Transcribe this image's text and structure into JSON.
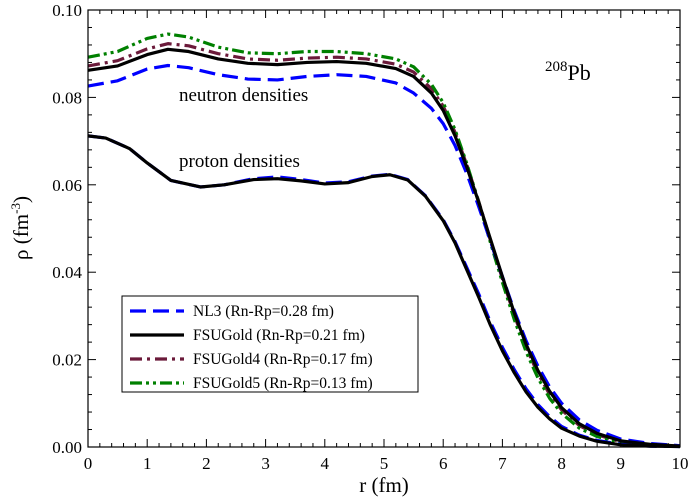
{
  "chart_data": {
    "type": "line",
    "xlabel": "r (fm)",
    "ylabel_main": "ρ (fm",
    "ylabel_sup": "-3",
    "ylabel_close": ")",
    "xlim": [
      0,
      10
    ],
    "ylim": [
      0,
      0.1
    ],
    "xticks": [
      "0",
      "1",
      "2",
      "3",
      "4",
      "5",
      "6",
      "7",
      "8",
      "9",
      "10"
    ],
    "yticks": [
      "0.00",
      "0.02",
      "0.04",
      "0.06",
      "0.08",
      "0.10"
    ],
    "grid": false,
    "legend_position": "bottom-left",
    "annotations": {
      "nucleus_mass": "208",
      "nucleus_symbol": "Pb",
      "neutron_label": "neutron densities",
      "proton_label": "proton densities"
    },
    "series": [
      {
        "name": "NL3 (Rn-Rp=0.28 fm)",
        "color": "#0000ff",
        "dash": "long-dash",
        "neutron": {
          "x": [
            0,
            0.5,
            1.0,
            1.35,
            1.7,
            2.2,
            2.7,
            3.2,
            3.7,
            4.2,
            4.7,
            5.2,
            5.5,
            5.8,
            6.0,
            6.2,
            6.4,
            6.6,
            6.8,
            7.0,
            7.2,
            7.4,
            7.6,
            7.8,
            8.0,
            8.3,
            8.6,
            9.0,
            9.5,
            10.0
          ],
          "y": [
            0.0826,
            0.0838,
            0.0865,
            0.0873,
            0.0868,
            0.0852,
            0.0842,
            0.084,
            0.0848,
            0.0852,
            0.0848,
            0.0833,
            0.081,
            0.0775,
            0.074,
            0.069,
            0.0625,
            0.055,
            0.047,
            0.039,
            0.0312,
            0.0243,
            0.0185,
            0.0137,
            0.01,
            0.0062,
            0.0038,
            0.0018,
            0.0008,
            0.0003
          ]
        },
        "proton": {
          "x": [
            0,
            0.3,
            0.7,
            1.0,
            1.4,
            1.9,
            2.3,
            2.8,
            3.2,
            3.6,
            4.0,
            4.4,
            4.8,
            5.1,
            5.4,
            5.7,
            6.0,
            6.2,
            6.4,
            6.6,
            6.8,
            7.0,
            7.2,
            7.4,
            7.6,
            7.8,
            8.0,
            8.3,
            8.6,
            9.0,
            9.5,
            10.0
          ],
          "y": [
            0.0712,
            0.0707,
            0.0683,
            0.065,
            0.061,
            0.0595,
            0.06,
            0.0614,
            0.0618,
            0.0612,
            0.0604,
            0.0607,
            0.062,
            0.0624,
            0.0612,
            0.0575,
            0.052,
            0.047,
            0.041,
            0.035,
            0.0285,
            0.0228,
            0.0177,
            0.0133,
            0.0097,
            0.0069,
            0.0047,
            0.0027,
            0.0015,
            0.0006,
            0.0002,
            0.0001
          ]
        }
      },
      {
        "name": "FSUGold (Rn-Rp=0.21 fm)",
        "color": "#000000",
        "dash": "solid",
        "neutron": {
          "x": [
            0,
            0.5,
            1.0,
            1.35,
            1.7,
            2.2,
            2.7,
            3.2,
            3.7,
            4.2,
            4.7,
            5.2,
            5.5,
            5.8,
            6.0,
            6.2,
            6.4,
            6.6,
            6.8,
            7.0,
            7.2,
            7.4,
            7.6,
            7.8,
            8.0,
            8.3,
            8.6,
            9.0,
            9.5,
            10.0
          ],
          "y": [
            0.0862,
            0.0872,
            0.0898,
            0.091,
            0.0905,
            0.0888,
            0.0878,
            0.0875,
            0.088,
            0.0882,
            0.0878,
            0.0866,
            0.0848,
            0.081,
            0.077,
            0.0712,
            0.064,
            0.056,
            0.0475,
            0.039,
            0.0307,
            0.0235,
            0.0175,
            0.0127,
            0.009,
            0.0053,
            0.0031,
            0.0014,
            0.0006,
            0.0002
          ]
        },
        "proton": {
          "x": [
            0,
            0.3,
            0.7,
            1.0,
            1.4,
            1.9,
            2.3,
            2.8,
            3.2,
            3.6,
            4.0,
            4.4,
            4.8,
            5.1,
            5.4,
            5.7,
            6.0,
            6.2,
            6.4,
            6.6,
            6.8,
            7.0,
            7.2,
            7.4,
            7.6,
            7.8,
            8.0,
            8.3,
            8.6,
            9.0,
            9.5,
            10.0
          ],
          "y": [
            0.0712,
            0.0707,
            0.0683,
            0.065,
            0.061,
            0.0595,
            0.06,
            0.0612,
            0.0614,
            0.0609,
            0.0602,
            0.0605,
            0.0619,
            0.0623,
            0.0611,
            0.0574,
            0.0518,
            0.0467,
            0.0405,
            0.0343,
            0.0278,
            0.022,
            0.017,
            0.0126,
            0.0091,
            0.0064,
            0.0043,
            0.0025,
            0.0013,
            0.0005,
            0.0002,
            0.0001
          ]
        }
      },
      {
        "name": "FSUGold4 (Rn-Rp=0.17 fm)",
        "color": "#6b1a3a",
        "dash": "dash-dot",
        "neutron": {
          "x": [
            0,
            0.5,
            1.0,
            1.35,
            1.7,
            2.2,
            2.7,
            3.2,
            3.7,
            4.2,
            4.7,
            5.2,
            5.5,
            5.8,
            6.0,
            6.2,
            6.4,
            6.6,
            6.8,
            7.0,
            7.2,
            7.4,
            7.6,
            7.8,
            8.0,
            8.3,
            8.6,
            9.0,
            9.5,
            10.0
          ],
          "y": [
            0.0872,
            0.0884,
            0.0911,
            0.0923,
            0.0918,
            0.09,
            0.0888,
            0.0885,
            0.089,
            0.0892,
            0.0888,
            0.0876,
            0.0858,
            0.082,
            0.078,
            0.072,
            0.0645,
            0.0562,
            0.0472,
            0.0385,
            0.0302,
            0.0228,
            0.0168,
            0.012,
            0.0085,
            0.0049,
            0.0028,
            0.0012,
            0.0005,
            0.0002
          ]
        }
      },
      {
        "name": "FSUGold5 (Rn-Rp=0.13 fm)",
        "color": "#008000",
        "dash": "dash-dot-dot",
        "neutron": {
          "x": [
            0,
            0.5,
            1.0,
            1.35,
            1.7,
            2.2,
            2.7,
            3.2,
            3.7,
            4.2,
            4.7,
            5.2,
            5.5,
            5.8,
            6.0,
            6.2,
            6.4,
            6.6,
            6.8,
            7.0,
            7.2,
            7.4,
            7.6,
            7.8,
            8.0,
            8.3,
            8.6,
            9.0,
            9.5,
            10.0
          ],
          "y": [
            0.0892,
            0.0905,
            0.0935,
            0.0945,
            0.0938,
            0.0915,
            0.0902,
            0.09,
            0.0905,
            0.0905,
            0.09,
            0.0888,
            0.087,
            0.083,
            0.0788,
            0.0726,
            0.0648,
            0.056,
            0.0467,
            0.0377,
            0.0292,
            0.0218,
            0.0158,
            0.0111,
            0.0077,
            0.0043,
            0.0024,
            0.001,
            0.0004,
            0.0001
          ]
        }
      }
    ]
  }
}
